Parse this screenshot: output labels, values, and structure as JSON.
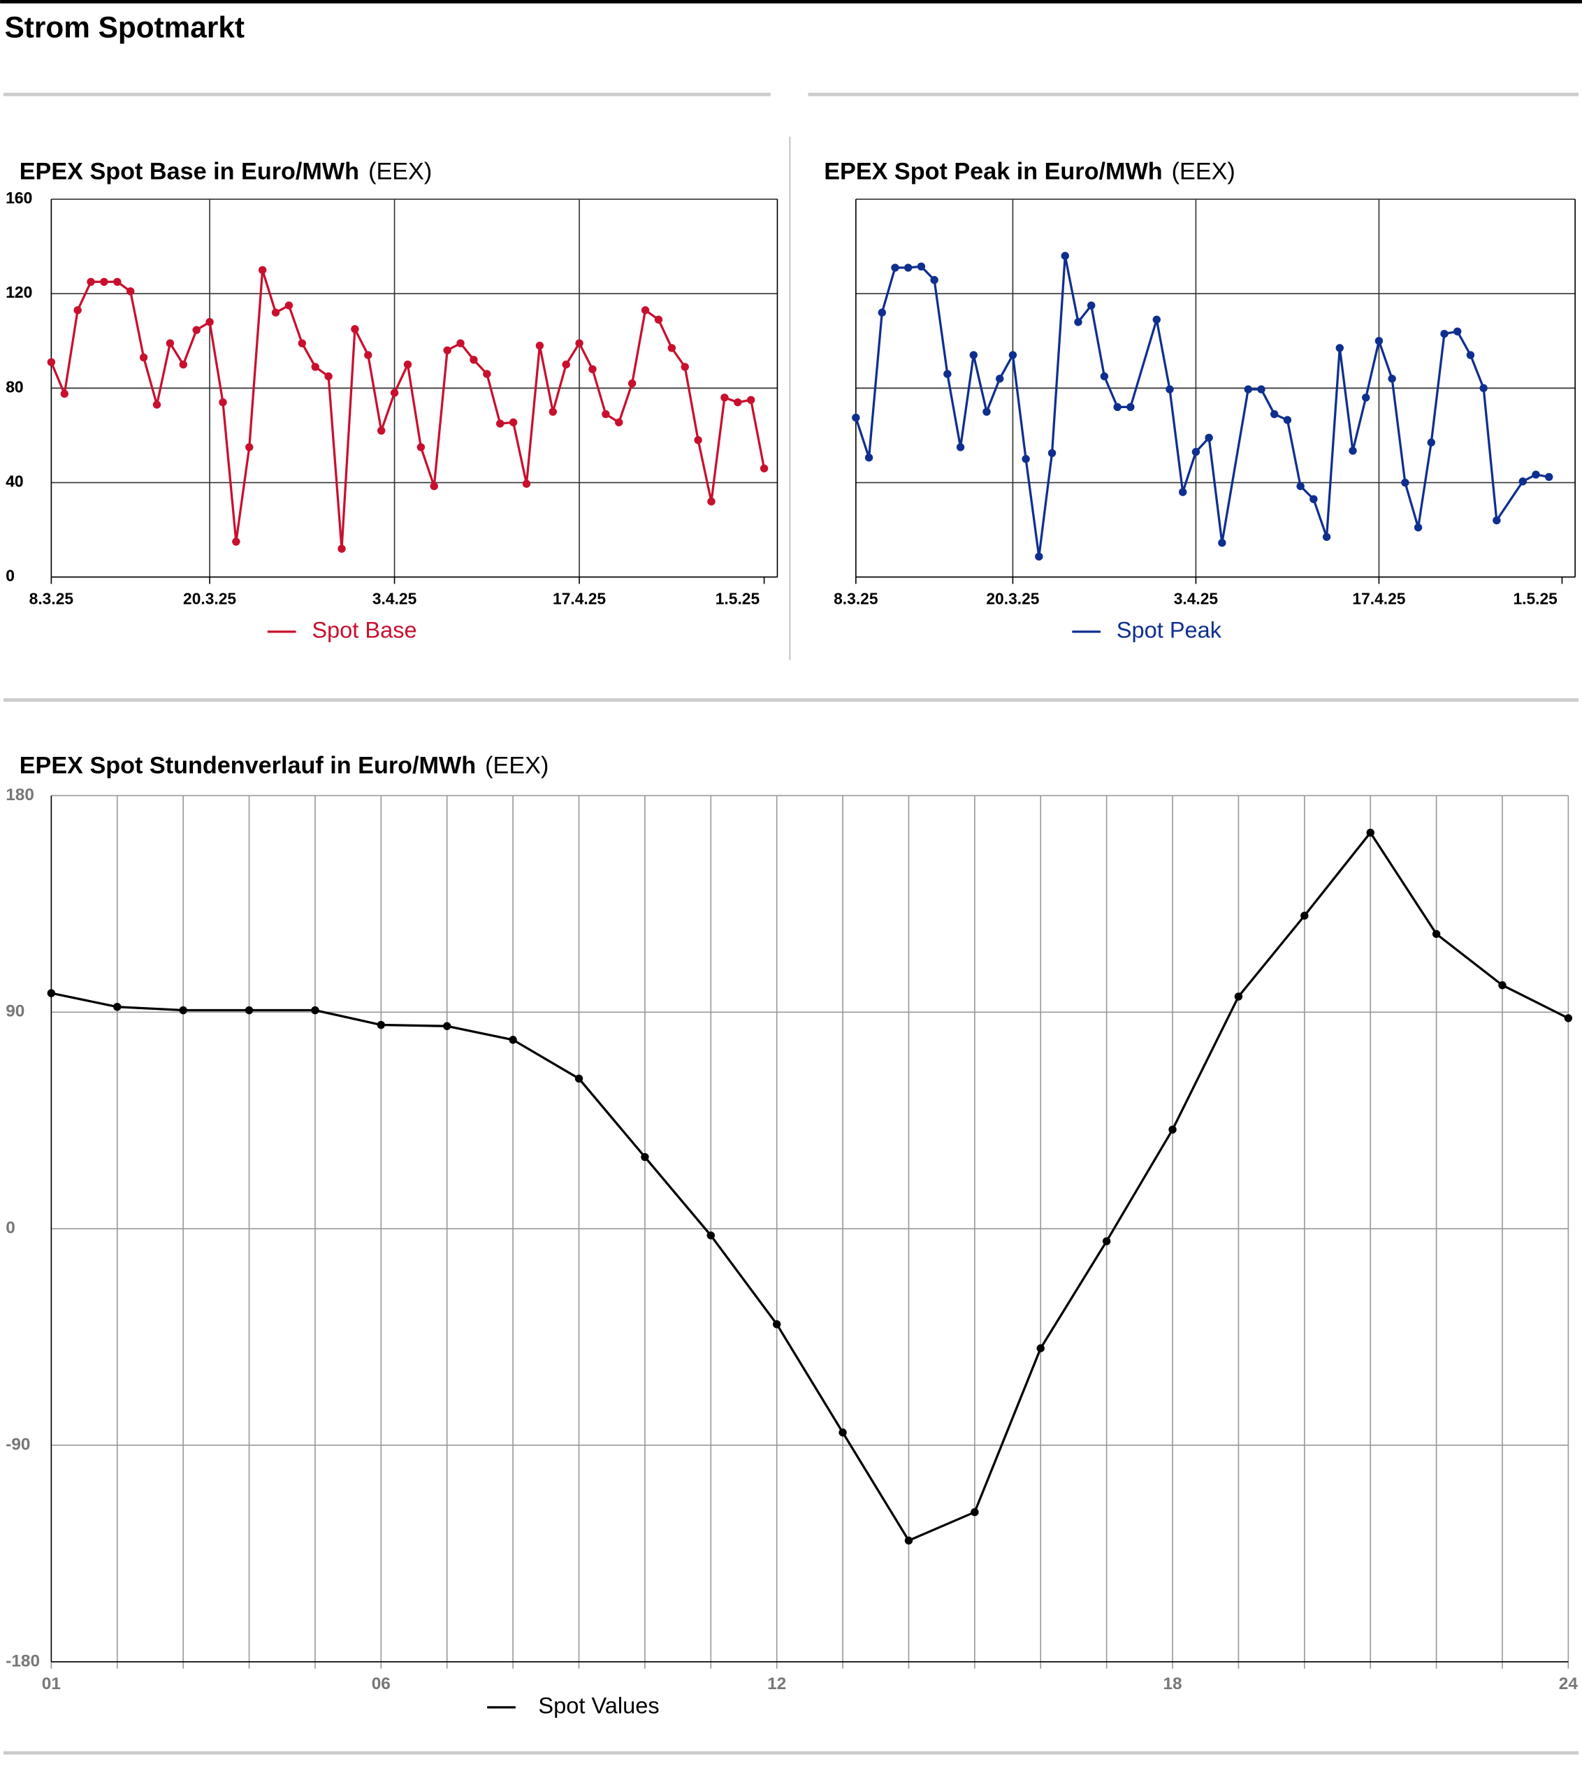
{
  "page_title": "Strom Spotmarkt",
  "chart_data": [
    {
      "type": "line",
      "title": "EPEX Spot Base in Euro/MWh",
      "source": "(EEX)",
      "x": [
        "8.3.25",
        "9.3.25",
        "10.3.25",
        "11.3.25",
        "12.3.25",
        "13.3.25",
        "14.3.25",
        "15.3.25",
        "16.3.25",
        "17.3.25",
        "18.3.25",
        "19.3.25",
        "20.3.25",
        "21.3.25",
        "22.3.25",
        "23.3.25",
        "24.3.25",
        "25.3.25",
        "26.3.25",
        "27.3.25",
        "28.3.25",
        "29.3.25",
        "30.3.25",
        "31.3.25",
        "1.4.25",
        "2.4.25",
        "3.4.25",
        "4.4.25",
        "5.4.25",
        "6.4.25",
        "7.4.25",
        "8.4.25",
        "9.4.25",
        "10.4.25",
        "11.4.25",
        "12.4.25",
        "13.4.25",
        "14.4.25",
        "15.4.25",
        "16.4.25",
        "17.4.25",
        "18.4.25",
        "19.4.25",
        "20.4.25",
        "21.4.25",
        "22.4.25",
        "23.4.25",
        "24.4.25",
        "25.4.25",
        "26.4.25",
        "27.4.25",
        "28.4.25",
        "29.4.25",
        "30.4.25",
        "1.5.25"
      ],
      "series": [
        {
          "name": "Spot Base",
          "color": "#c8102e",
          "values": [
            91,
            77.6,
            113,
            125,
            125,
            125,
            121,
            93,
            73,
            99,
            90,
            104.6,
            108,
            74,
            15,
            55,
            130,
            112,
            115,
            99,
            89,
            85,
            12,
            105,
            94,
            62,
            78,
            90,
            55,
            38.5,
            96,
            99,
            92,
            86,
            65,
            65.5,
            39.5,
            98,
            70,
            90,
            99,
            88,
            69,
            65.5,
            82,
            113,
            109,
            97,
            89,
            58,
            32,
            76,
            74,
            75,
            46
          ]
        }
      ],
      "xlim": [
        "8.3.25",
        "2.5.25"
      ],
      "xticks": [
        "8.3.25",
        "20.3.25",
        "3.4.25",
        "17.4.25",
        "1.5.25"
      ],
      "ylim": [
        0,
        160
      ],
      "yticks": [
        0,
        40,
        80,
        120,
        160
      ],
      "grid": true,
      "legend": "bottom"
    },
    {
      "type": "line",
      "title": "EPEX Spot Peak in Euro/MWh",
      "source": "(EEX)",
      "x": [
        "8.3.25",
        "9.3.25",
        "10.3.25",
        "11.3.25",
        "12.3.25",
        "13.3.25",
        "14.3.25",
        "15.3.25",
        "16.3.25",
        "17.3.25",
        "18.3.25",
        "19.3.25",
        "20.3.25",
        "21.3.25",
        "22.3.25",
        "23.3.25",
        "24.3.25",
        "25.3.25",
        "26.3.25",
        "27.3.25",
        "28.3.25",
        "29.3.25",
        "31.3.25",
        "1.4.25",
        "2.4.25",
        "3.4.25",
        "4.4.25",
        "5.4.25",
        "7.4.25",
        "8.4.25",
        "9.4.25",
        "10.4.25",
        "11.4.25",
        "12.4.25",
        "13.4.25",
        "14.4.25",
        "15.4.25",
        "16.4.25",
        "17.4.25",
        "18.4.25",
        "19.4.25",
        "20.4.25",
        "21.4.25",
        "22.4.25",
        "23.4.25",
        "24.4.25",
        "25.4.25",
        "26.4.25",
        "28.4.25",
        "29.4.25",
        "30.4.25"
      ],
      "series": [
        {
          "name": "Spot Peak",
          "color": "#0f2f8f",
          "values": [
            67.5,
            50.6,
            112,
            131,
            131,
            131.5,
            125.8,
            86,
            55,
            94,
            70,
            84,
            94,
            50,
            8.7,
            52.5,
            136,
            108,
            115,
            85,
            72,
            72,
            109,
            79.5,
            36,
            53,
            59,
            14.5,
            79.5,
            79.5,
            69,
            66.5,
            38.5,
            33,
            17,
            97,
            53.5,
            76,
            100,
            84,
            40,
            21,
            57,
            103,
            104,
            94,
            80,
            24,
            40.5,
            43.4,
            42.4
          ]
        }
      ],
      "xlim": [
        "8.3.25",
        "2.5.25"
      ],
      "xticks": [
        "8.3.25",
        "20.3.25",
        "3.4.25",
        "17.4.25",
        "1.5.25"
      ],
      "ylim": [
        0,
        160
      ],
      "yticks": [
        0,
        40,
        80,
        120,
        160
      ],
      "grid": true,
      "legend": "bottom"
    },
    {
      "type": "line",
      "title": "EPEX Spot Stundenverlauf in Euro/MWh",
      "source": "(EEX)",
      "categories": [
        "01",
        null,
        null,
        null,
        null,
        "06",
        null,
        null,
        null,
        null,
        null,
        "12",
        null,
        null,
        null,
        null,
        null,
        "18",
        null,
        null,
        null,
        null,
        null,
        "24"
      ],
      "series": [
        {
          "name": "Spot Values",
          "color": "#000000",
          "values": [
            97.9,
            92.2,
            90.8,
            90.8,
            90.8,
            84.7,
            84.2,
            78.5,
            62.4,
            29.8,
            -2.8,
            -39.7,
            -84.7,
            -129.6,
            -117.8,
            -49.7,
            -5.2,
            41.2,
            96.5,
            130.1,
            164.6,
            122.5,
            101.2,
            87.5
          ]
        }
      ],
      "ylim": [
        -180,
        180
      ],
      "yticks": [
        -180,
        -90,
        0,
        90,
        180
      ],
      "grid": true,
      "legend": "bottom"
    }
  ]
}
